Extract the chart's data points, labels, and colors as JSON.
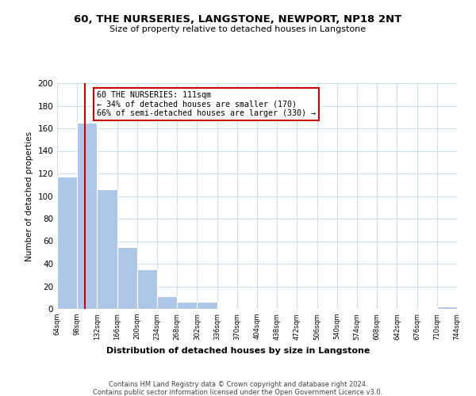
{
  "title": "60, THE NURSERIES, LANGSTONE, NEWPORT, NP18 2NT",
  "subtitle": "Size of property relative to detached houses in Langstone",
  "xlabel": "Distribution of detached houses by size in Langstone",
  "ylabel": "Number of detached properties",
  "bar_color": "#aec6e8",
  "bar_edge_color": "#ffffff",
  "bin_edges": [
    64,
    98,
    132,
    166,
    200,
    234,
    268,
    302,
    336,
    370,
    404,
    438,
    472,
    506,
    540,
    574,
    608,
    642,
    676,
    710,
    744
  ],
  "bar_heights": [
    117,
    165,
    106,
    55,
    35,
    11,
    6,
    6,
    0,
    0,
    0,
    0,
    0,
    0,
    0,
    0,
    0,
    0,
    0,
    2
  ],
  "property_size": 111,
  "vline_color": "#cc0000",
  "annotation_text": "60 THE NURSERIES: 111sqm\n← 34% of detached houses are smaller (170)\n66% of semi-detached houses are larger (330) →",
  "annotation_box_color": "#ffffff",
  "annotation_box_edge_color": "#cc0000",
  "ylim": [
    0,
    200
  ],
  "yticks": [
    0,
    20,
    40,
    60,
    80,
    100,
    120,
    140,
    160,
    180,
    200
  ],
  "tick_labels": [
    "64sqm",
    "98sqm",
    "132sqm",
    "166sqm",
    "200sqm",
    "234sqm",
    "268sqm",
    "302sqm",
    "336sqm",
    "370sqm",
    "404sqm",
    "438sqm",
    "472sqm",
    "506sqm",
    "540sqm",
    "574sqm",
    "608sqm",
    "642sqm",
    "676sqm",
    "710sqm",
    "744sqm"
  ],
  "grid_color": "#ccddee",
  "footer_line1": "Contains HM Land Registry data © Crown copyright and database right 2024.",
  "footer_line2": "Contains public sector information licensed under the Open Government Licence v3.0.",
  "bg_color": "#ffffff"
}
